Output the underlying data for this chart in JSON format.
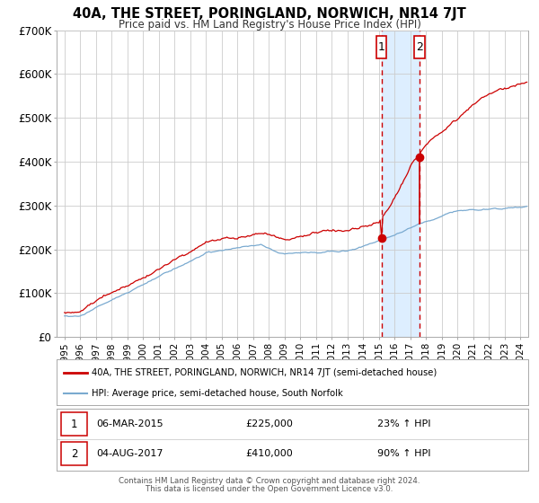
{
  "title": "40A, THE STREET, PORINGLAND, NORWICH, NR14 7JT",
  "subtitle": "Price paid vs. HM Land Registry's House Price Index (HPI)",
  "red_label": "40A, THE STREET, PORINGLAND, NORWICH, NR14 7JT (semi-detached house)",
  "blue_label": "HPI: Average price, semi-detached house, South Norfolk",
  "marker1_date": "06-MAR-2015",
  "marker1_price": "£225,000",
  "marker1_hpi": "23% ↑ HPI",
  "marker2_date": "04-AUG-2017",
  "marker2_price": "£410,000",
  "marker2_hpi": "90% ↑ HPI",
  "vline1_x": 2015.17,
  "vline2_x": 2017.58,
  "point1_x": 2015.17,
  "point1_y": 225000,
  "point2_x": 2017.58,
  "point2_y": 410000,
  "vline2_bottom": 258000,
  "ylim": [
    0,
    700000
  ],
  "xlim": [
    1994.5,
    2024.5
  ],
  "background_color": "#ffffff",
  "grid_color": "#cccccc",
  "red_color": "#cc0000",
  "blue_color": "#7aaad0",
  "shade_color": "#ddeeff",
  "footer_line1": "Contains HM Land Registry data © Crown copyright and database right 2024.",
  "footer_line2": "This data is licensed under the Open Government Licence v3.0."
}
